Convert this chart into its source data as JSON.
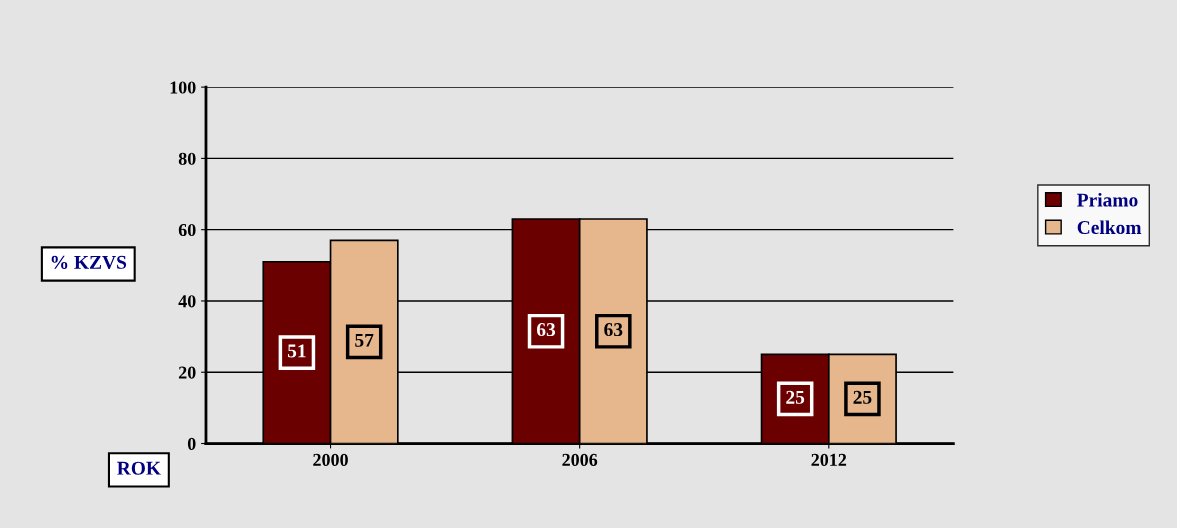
{
  "chart_data": {
    "type": "bar",
    "categories": [
      "2000",
      "2006",
      "2012"
    ],
    "series": [
      {
        "name": "Priamo",
        "color": "#6b0000",
        "values": [
          51,
          63,
          25
        ]
      },
      {
        "name": "Celkom",
        "color": "#e6b68c",
        "values": [
          57,
          63,
          25
        ]
      }
    ],
    "ylabel": "% KZVS",
    "xlabel": "ROK",
    "ylim": [
      0,
      100
    ],
    "yticks": [
      0,
      20,
      40,
      60,
      80,
      100
    ],
    "grid": "y",
    "legend": "right",
    "data_labels": true
  }
}
